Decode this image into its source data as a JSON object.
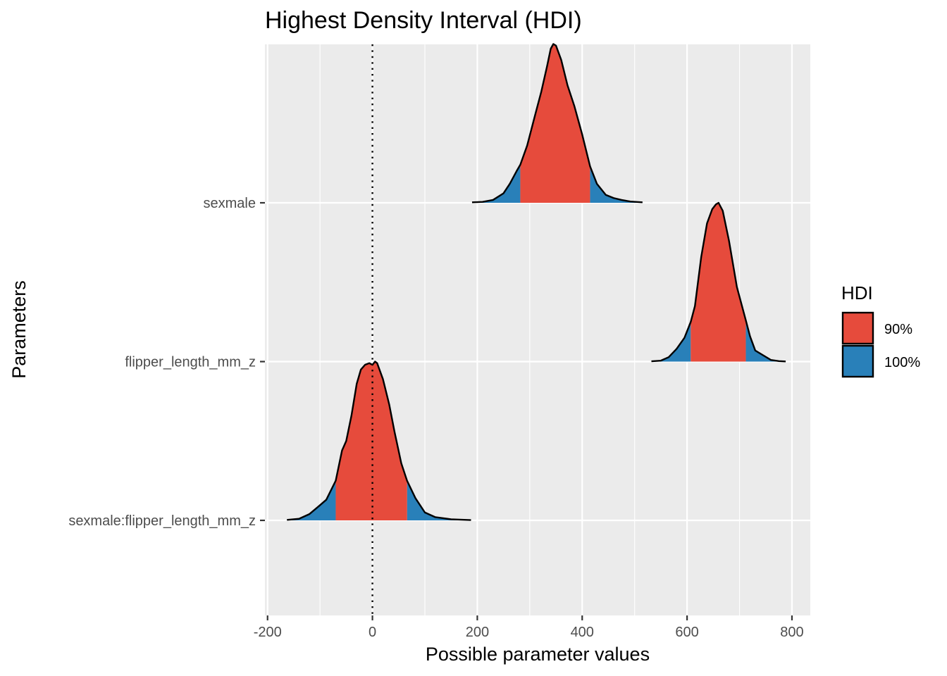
{
  "colors": {
    "panel_bg": "#ebebeb",
    "grid_major": "#ffffff",
    "hdi_90": "#e64b3c",
    "hdi_100": "#2980b9",
    "outline": "#000000",
    "tick_text": "#4d4d4d"
  },
  "chart_data": {
    "type": "ridgeline-density",
    "title": "Highest Density Interval (HDI)",
    "xlabel": "Possible parameter values",
    "ylabel": "Parameters",
    "xlim": [
      -205,
      835
    ],
    "xticks": [
      {
        "value": -200,
        "label": "-200"
      },
      {
        "value": 0,
        "label": "0"
      },
      {
        "value": 200,
        "label": "200"
      },
      {
        "value": 400,
        "label": "400"
      },
      {
        "value": 600,
        "label": "600"
      },
      {
        "value": 800,
        "label": "800"
      }
    ],
    "reference_line": {
      "x": 0,
      "style": "dotted"
    },
    "legend": {
      "title": "HDI",
      "position": "right",
      "entries": [
        {
          "label": "90%",
          "color_key": "hdi_90"
        },
        {
          "label": "100%",
          "color_key": "hdi_100"
        }
      ]
    },
    "scale_max_height": 1.0,
    "parameters": [
      {
        "name": "sexmale",
        "hdi_90": [
          282,
          415
        ],
        "hdi_100": [
          190,
          515
        ],
        "density": [
          [
            190,
            0.003
          ],
          [
            210,
            0.006
          ],
          [
            230,
            0.018
          ],
          [
            250,
            0.06
          ],
          [
            262,
            0.12
          ],
          [
            275,
            0.2
          ],
          [
            282,
            0.24
          ],
          [
            295,
            0.36
          ],
          [
            310,
            0.55
          ],
          [
            322,
            0.7
          ],
          [
            333,
            0.86
          ],
          [
            340,
            0.97
          ],
          [
            345,
            1.0
          ],
          [
            350,
            0.99
          ],
          [
            360,
            0.9
          ],
          [
            372,
            0.74
          ],
          [
            385,
            0.61
          ],
          [
            400,
            0.43
          ],
          [
            415,
            0.23
          ],
          [
            428,
            0.12
          ],
          [
            445,
            0.05
          ],
          [
            460,
            0.03
          ],
          [
            475,
            0.018
          ],
          [
            492,
            0.008
          ],
          [
            515,
            0.003
          ]
        ]
      },
      {
        "name": "flipper_length_mm_z",
        "hdi_90": [
          607,
          712
        ],
        "hdi_100": [
          532,
          788
        ],
        "density": [
          [
            532,
            0.002
          ],
          [
            550,
            0.006
          ],
          [
            565,
            0.028
          ],
          [
            580,
            0.08
          ],
          [
            595,
            0.15
          ],
          [
            607,
            0.25
          ],
          [
            615,
            0.35
          ],
          [
            627,
            0.66
          ],
          [
            638,
            0.87
          ],
          [
            648,
            0.96
          ],
          [
            655,
            0.99
          ],
          [
            660,
            1.0
          ],
          [
            668,
            0.95
          ],
          [
            680,
            0.76
          ],
          [
            695,
            0.47
          ],
          [
            712,
            0.26
          ],
          [
            720,
            0.16
          ],
          [
            730,
            0.07
          ],
          [
            740,
            0.05
          ],
          [
            750,
            0.03
          ],
          [
            760,
            0.01
          ],
          [
            775,
            0.003
          ],
          [
            788,
            0.001
          ]
        ]
      },
      {
        "name": "sexmale:flipper_length_mm_z",
        "hdi_90": [
          -70,
          66
        ],
        "hdi_100": [
          -163,
          188
        ],
        "density": [
          [
            -163,
            0.003
          ],
          [
            -140,
            0.01
          ],
          [
            -120,
            0.04
          ],
          [
            -102,
            0.09
          ],
          [
            -88,
            0.13
          ],
          [
            -70,
            0.25
          ],
          [
            -58,
            0.44
          ],
          [
            -50,
            0.5
          ],
          [
            -40,
            0.66
          ],
          [
            -30,
            0.86
          ],
          [
            -22,
            0.95
          ],
          [
            -14,
            0.98
          ],
          [
            -6,
            0.99
          ],
          [
            0,
            0.98
          ],
          [
            5,
            1.0
          ],
          [
            9,
            0.99
          ],
          [
            20,
            0.89
          ],
          [
            32,
            0.73
          ],
          [
            42,
            0.56
          ],
          [
            55,
            0.36
          ],
          [
            66,
            0.25
          ],
          [
            82,
            0.14
          ],
          [
            100,
            0.05
          ],
          [
            120,
            0.02
          ],
          [
            150,
            0.007
          ],
          [
            188,
            0.002
          ]
        ]
      }
    ]
  }
}
